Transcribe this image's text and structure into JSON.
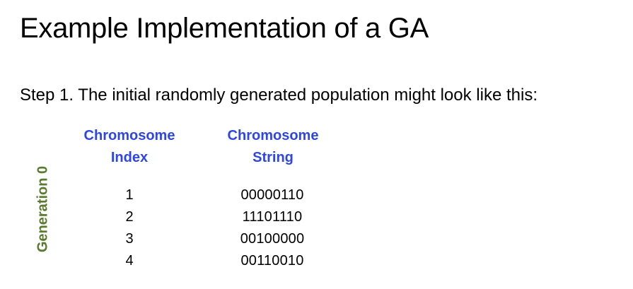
{
  "title": "Example Implementation of a GA",
  "step_text": "Step 1. The initial randomly generated population might look like this:",
  "generation_label": "Generation 0",
  "columns": {
    "index": [
      "Chromosome",
      "Index"
    ],
    "string": [
      "Chromosome",
      "String"
    ]
  },
  "rows": [
    {
      "index": "1",
      "string": "00000110"
    },
    {
      "index": "2",
      "string": "11101110"
    },
    {
      "index": "3",
      "string": "00100000"
    },
    {
      "index": "4",
      "string": "00110010"
    }
  ],
  "colors": {
    "header": "#2e46e8",
    "generation": "#5a7a2e"
  }
}
